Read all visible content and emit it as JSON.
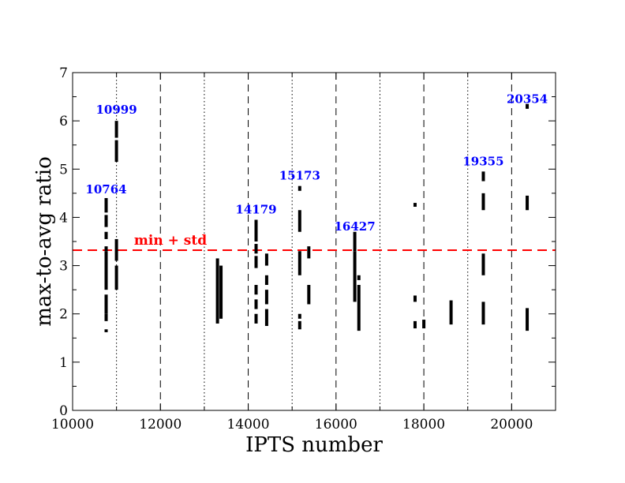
{
  "chart_data": {
    "type": "scatter",
    "xlabel": "IPTS number",
    "ylabel": "max-to-avg ratio",
    "xlim": [
      10000,
      21000
    ],
    "ylim": [
      0,
      7
    ],
    "x_ticks": [
      10000,
      12000,
      14000,
      16000,
      18000,
      20000
    ],
    "y_ticks": [
      0,
      1,
      2,
      3,
      4,
      5,
      6,
      7
    ],
    "grid": "vertical reference lines",
    "dashed_lines_x": [
      12000,
      14000,
      16000,
      18000,
      20000
    ],
    "dotted_lines_x": [
      11000,
      13000,
      15000,
      17000,
      19000
    ],
    "threshold": {
      "label": "min + std",
      "y": 3.32,
      "color": "#ff0000"
    },
    "annotations": [
      {
        "text": "10764",
        "x": 10764,
        "y": 4.5
      },
      {
        "text": "10999",
        "x": 10999,
        "y": 6.15
      },
      {
        "text": "14179",
        "x": 14179,
        "y": 4.08
      },
      {
        "text": "15173",
        "x": 15173,
        "y": 4.78
      },
      {
        "text": "16427",
        "x": 16427,
        "y": 3.73
      },
      {
        "text": "19355",
        "x": 19355,
        "y": 5.08
      },
      {
        "text": "20354",
        "x": 20354,
        "y": 6.37
      }
    ],
    "annotation_color": "#0000ff",
    "marker_color": "#000000",
    "series": [
      {
        "x": 10764,
        "segments": [
          [
            1.62,
            1.68
          ],
          [
            1.85,
            2.0
          ],
          [
            2.0,
            2.4
          ],
          [
            2.5,
            3.3
          ],
          [
            3.3,
            3.4
          ],
          [
            3.55,
            3.7
          ],
          [
            3.8,
            4.05
          ],
          [
            4.1,
            4.4
          ]
        ]
      },
      {
        "x": 10999,
        "segments": [
          [
            2.5,
            3.0
          ],
          [
            3.1,
            3.55
          ],
          [
            5.15,
            5.6
          ],
          [
            5.65,
            6.0
          ]
        ]
      },
      {
        "x": 13300,
        "segments": [
          [
            1.8,
            3.15
          ]
        ]
      },
      {
        "x": 13380,
        "segments": [
          [
            1.9,
            3.0
          ]
        ]
      },
      {
        "x": 14179,
        "segments": [
          [
            1.8,
            2.0
          ],
          [
            2.1,
            2.3
          ],
          [
            2.4,
            2.6
          ],
          [
            2.95,
            3.2
          ],
          [
            3.25,
            3.45
          ],
          [
            3.5,
            3.95
          ]
        ]
      },
      {
        "x": 14420,
        "segments": [
          [
            1.75,
            2.1
          ],
          [
            2.2,
            2.5
          ],
          [
            2.6,
            2.8
          ],
          [
            3.0,
            3.25
          ]
        ]
      },
      {
        "x": 15173,
        "segments": [
          [
            1.68,
            1.85
          ],
          [
            1.9,
            2.0
          ],
          [
            2.8,
            3.3
          ],
          [
            3.7,
            4.15
          ],
          [
            4.55,
            4.65
          ]
        ]
      },
      {
        "x": 15380,
        "segments": [
          [
            2.2,
            2.6
          ],
          [
            3.15,
            3.4
          ]
        ]
      },
      {
        "x": 16427,
        "segments": [
          [
            2.25,
            3.3
          ],
          [
            3.3,
            3.7
          ]
        ]
      },
      {
        "x": 16520,
        "segments": [
          [
            1.65,
            2.6
          ],
          [
            2.7,
            2.8
          ]
        ]
      },
      {
        "x": 17800,
        "segments": [
          [
            1.7,
            1.85
          ],
          [
            2.25,
            2.38
          ],
          [
            4.22,
            4.3
          ]
        ]
      },
      {
        "x": 18000,
        "segments": [
          [
            1.7,
            1.88
          ]
        ]
      },
      {
        "x": 18620,
        "segments": [
          [
            1.78,
            2.28
          ]
        ]
      },
      {
        "x": 19355,
        "segments": [
          [
            1.78,
            2.25
          ],
          [
            2.8,
            3.25
          ],
          [
            4.15,
            4.5
          ],
          [
            4.75,
            4.95
          ]
        ]
      },
      {
        "x": 20354,
        "segments": [
          [
            1.65,
            2.12
          ],
          [
            4.15,
            4.45
          ],
          [
            6.25,
            6.35
          ]
        ]
      }
    ]
  }
}
